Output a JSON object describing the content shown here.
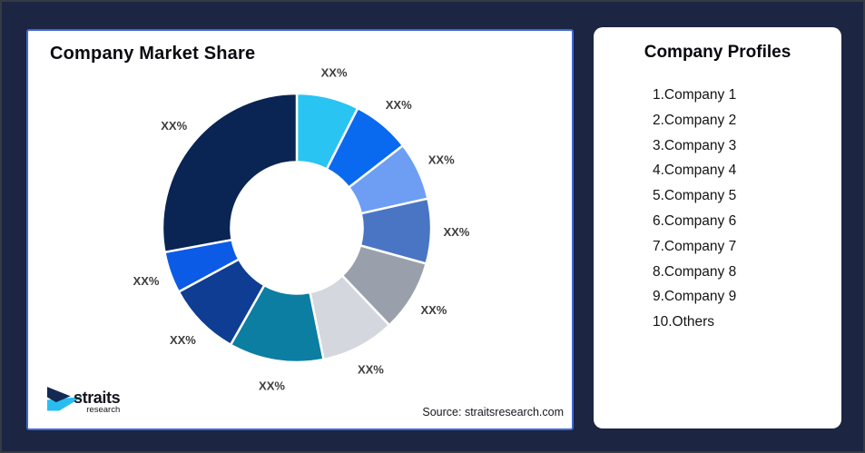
{
  "canvas": {
    "background_color": "#1C2541",
    "border_color": "#343B45"
  },
  "chart_card": {
    "title": "Company Market Share",
    "source_text": "Source: straitsresearch.com",
    "accent_border_color": "#3E68D3"
  },
  "logo": {
    "name": "straits",
    "subtitle": "research",
    "navy_color": "#132A52",
    "cyan_color": "#29BDEF"
  },
  "profiles_card": {
    "title": "Company Profiles",
    "items": [
      "1.Company 1",
      "2.Company 2",
      "3.Company 3",
      "4.Company 4",
      "5.Company 5",
      "6.Company 6",
      "7.Company 7",
      "8.Company 8",
      "9.Company 9",
      "10.Others"
    ]
  },
  "chart_data": {
    "type": "pie",
    "subtype": "donut",
    "title": "Company Market Share",
    "start_angle_deg": 0,
    "inner_radius_ratio": 0.49,
    "legend_position": "none",
    "label_color": "#3D3D3D",
    "segments": [
      {
        "label": "XX%",
        "value": 7.5,
        "color": "#29C4F2"
      },
      {
        "label": "XX%",
        "value": 7.0,
        "color": "#0A6AEF"
      },
      {
        "label": "XX%",
        "value": 7.0,
        "color": "#6D9EF4"
      },
      {
        "label": "XX%",
        "value": 7.8,
        "color": "#4A75C5"
      },
      {
        "label": "XX%",
        "value": 8.6,
        "color": "#99A0AC"
      },
      {
        "label": "XX%",
        "value": 8.9,
        "color": "#D4D7DD"
      },
      {
        "label": "XX%",
        "value": 11.4,
        "color": "#0B7EA1"
      },
      {
        "label": "XX%",
        "value": 8.9,
        "color": "#0E3D93"
      },
      {
        "label": "XX%",
        "value": 5.0,
        "color": "#0B5BE6"
      },
      {
        "label": "XX%",
        "value": 27.9,
        "color": "#0A2453"
      }
    ]
  }
}
